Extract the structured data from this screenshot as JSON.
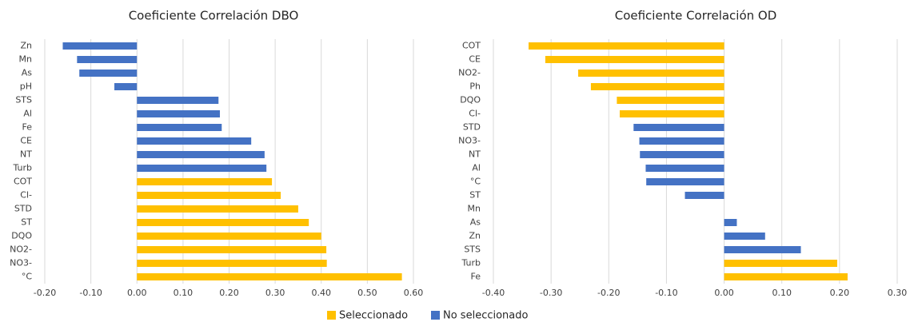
{
  "chart_data": [
    {
      "type": "hbar",
      "title": "Coeficiente Correlación DBO",
      "categories": [
        "Zn",
        "Mn",
        "As",
        "pH",
        "STS",
        "Al",
        "Fe",
        "CE",
        "NT",
        "Turb",
        "COT",
        "Cl-",
        "STD",
        "ST",
        "DQO",
        "NO2-",
        "NO3-",
        "°C"
      ],
      "values": [
        -0.161,
        -0.13,
        -0.125,
        -0.049,
        0.177,
        0.18,
        0.184,
        0.248,
        0.277,
        0.281,
        0.293,
        0.312,
        0.35,
        0.373,
        0.4,
        0.411,
        0.412,
        0.575
      ],
      "colors": [
        "#4472c4",
        "#4472c4",
        "#4472c4",
        "#4472c4",
        "#4472c4",
        "#4472c4",
        "#4472c4",
        "#4472c4",
        "#4472c4",
        "#4472c4",
        "#ffc000",
        "#ffc000",
        "#ffc000",
        "#ffc000",
        "#ffc000",
        "#ffc000",
        "#ffc000",
        "#ffc000"
      ],
      "xlim": [
        -0.2,
        0.6
      ],
      "xticks": [
        {
          "value": -0.2,
          "label": "-0.20"
        },
        {
          "value": -0.1,
          "label": "-0.10"
        },
        {
          "value": 0,
          "label": "0.00"
        },
        {
          "value": 0.1,
          "label": "0.10"
        },
        {
          "value": 0.2,
          "label": "0.20"
        },
        {
          "value": 0.3,
          "label": "0.30"
        },
        {
          "value": 0.4,
          "label": "0.40"
        },
        {
          "value": 0.5,
          "label": "0.50"
        },
        {
          "value": 0.6,
          "label": "0.60"
        }
      ],
      "grid": true
    },
    {
      "type": "hbar",
      "title": "Coeficiente Correlación OD",
      "categories": [
        "COT",
        "CE",
        "NO2-",
        "Ph",
        "DQO",
        "Cl-",
        "STD",
        "NO3-",
        "NT",
        "Al",
        "°C",
        "ST",
        "Mn",
        "As",
        "Zn",
        "STS",
        "Turb",
        "Fe"
      ],
      "values": [
        -0.339,
        -0.31,
        -0.253,
        -0.231,
        -0.186,
        -0.181,
        -0.157,
        -0.147,
        -0.146,
        -0.136,
        -0.135,
        -0.068,
        0,
        0.022,
        0.071,
        0.133,
        0.196,
        0.214
      ],
      "colors": [
        "#ffc000",
        "#ffc000",
        "#ffc000",
        "#ffc000",
        "#ffc000",
        "#ffc000",
        "#4472c4",
        "#4472c4",
        "#4472c4",
        "#4472c4",
        "#4472c4",
        "#4472c4",
        "#4472c4",
        "#4472c4",
        "#4472c4",
        "#4472c4",
        "#ffc000",
        "#ffc000"
      ],
      "xlim": [
        -0.4,
        0.3
      ],
      "xticks": [
        {
          "value": -0.4,
          "label": "-0.40"
        },
        {
          "value": -0.3,
          "label": "-0.30"
        },
        {
          "value": -0.2,
          "label": "-0.20"
        },
        {
          "value": -0.1,
          "label": "-0.10"
        },
        {
          "value": 0,
          "label": "0.00"
        },
        {
          "value": 0.1,
          "label": "0.10"
        },
        {
          "value": 0.2,
          "label": "0.20"
        },
        {
          "value": 0.3,
          "label": "0.30"
        }
      ],
      "grid": true
    }
  ],
  "legend": {
    "position": "bottom",
    "items": [
      {
        "name": "Seleccionado",
        "color": "#ffc000"
      },
      {
        "name": "No seleccionado",
        "color": "#4472c4"
      }
    ]
  }
}
